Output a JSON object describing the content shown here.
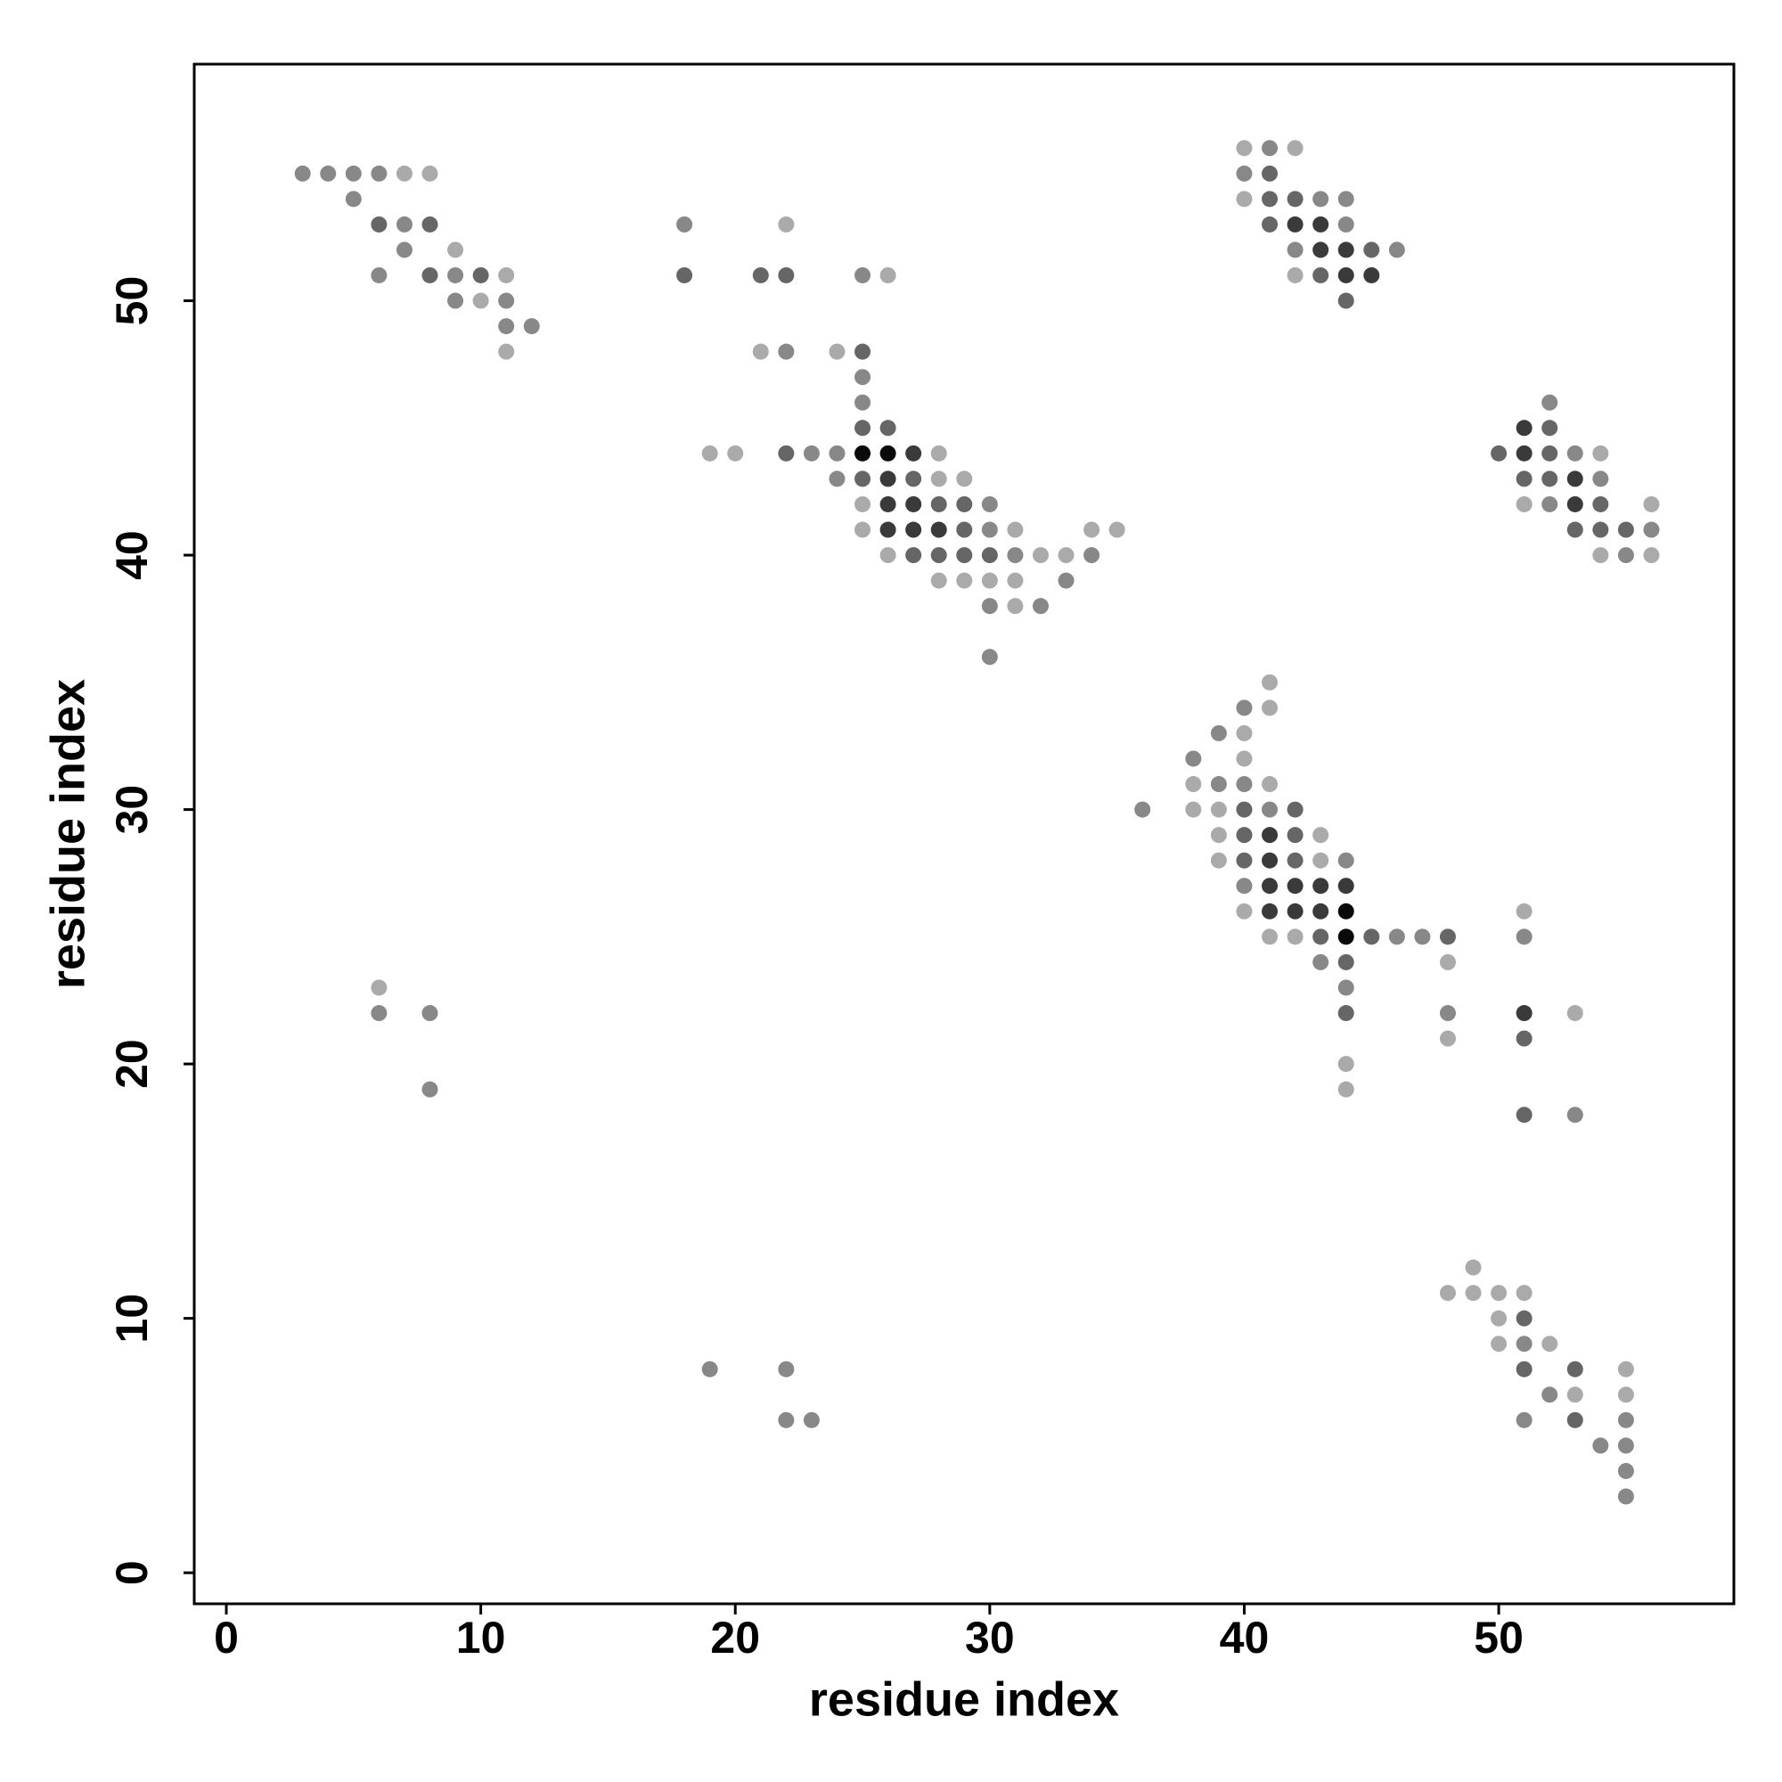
{
  "chart_data": {
    "type": "scatter",
    "xlabel": "residue index",
    "ylabel": "residue index",
    "xlim": [
      -1.26,
      59.24
    ],
    "ylim": [
      -1.22,
      59.3
    ],
    "xticks": [
      0,
      10,
      20,
      30,
      40,
      50
    ],
    "yticks": [
      0,
      10,
      20,
      30,
      40,
      50
    ],
    "grid": false,
    "series": [
      {
        "x": [
          40,
          41,
          42,
          3,
          4,
          5,
          6,
          7,
          8,
          40,
          41,
          5,
          40,
          41,
          42,
          43,
          44,
          6,
          7,
          8,
          18,
          22,
          41,
          42,
          43,
          44,
          7,
          9,
          42,
          43,
          44,
          45,
          46,
          6,
          8,
          9,
          10,
          11,
          18,
          21,
          22,
          25,
          26,
          42,
          43,
          44,
          45,
          9,
          10,
          11,
          44,
          11,
          12,
          11,
          21,
          22,
          24,
          25,
          25,
          25,
          52,
          25,
          26,
          51,
          52,
          19,
          20,
          22,
          23,
          24,
          25,
          26,
          27,
          28,
          50,
          51,
          52,
          53,
          54,
          24,
          25,
          26,
          27,
          28,
          29,
          51,
          52,
          53,
          54,
          25,
          26,
          27,
          28,
          29,
          30,
          51,
          52,
          53,
          54,
          56,
          25,
          26,
          27,
          28,
          29,
          30,
          31,
          34,
          35,
          53,
          54,
          55,
          56,
          26,
          27,
          28,
          29,
          30,
          31,
          32,
          33,
          34,
          54,
          55,
          56,
          28,
          29,
          30,
          31,
          33,
          30,
          31,
          32,
          30,
          41,
          40,
          41,
          39,
          40,
          38,
          40,
          38,
          39,
          40,
          41,
          36,
          38,
          39,
          40,
          41,
          42,
          39,
          40,
          41,
          42,
          43,
          39,
          40,
          41,
          42,
          43,
          44,
          40,
          41,
          42,
          43,
          44,
          40,
          41,
          42,
          43,
          44,
          51,
          41,
          42,
          43,
          44,
          45,
          46,
          47,
          48,
          51,
          43,
          44,
          48,
          6,
          44,
          6,
          8,
          44,
          48,
          51,
          53,
          48,
          51,
          44,
          8,
          44,
          51,
          53,
          49,
          48,
          49,
          50,
          51,
          50,
          51,
          50,
          51,
          52,
          19,
          22,
          51,
          53,
          55,
          52,
          53,
          55,
          22,
          23,
          51,
          53,
          55,
          54,
          55,
          55,
          55
        ],
        "values": [
          56,
          56,
          56,
          55,
          55,
          55,
          55,
          55,
          55,
          55,
          55,
          54,
          54,
          54,
          54,
          54,
          54,
          53,
          53,
          53,
          53,
          53,
          53,
          53,
          53,
          53,
          52,
          52,
          52,
          52,
          52,
          52,
          52,
          51,
          51,
          51,
          51,
          51,
          51,
          51,
          51,
          51,
          51,
          51,
          51,
          51,
          51,
          50,
          50,
          50,
          50,
          49,
          49,
          48,
          48,
          48,
          48,
          48,
          47,
          46,
          46,
          45,
          45,
          45,
          45,
          44,
          44,
          44,
          44,
          44,
          44,
          44,
          44,
          44,
          44,
          44,
          44,
          44,
          44,
          43,
          43,
          43,
          43,
          43,
          43,
          43,
          43,
          43,
          43,
          42,
          42,
          42,
          42,
          42,
          42,
          42,
          42,
          42,
          42,
          42,
          41,
          41,
          41,
          41,
          41,
          41,
          41,
          41,
          41,
          41,
          41,
          41,
          41,
          40,
          40,
          40,
          40,
          40,
          40,
          40,
          40,
          40,
          40,
          40,
          40,
          39,
          39,
          39,
          39,
          39,
          38,
          38,
          38,
          36,
          35,
          34,
          34,
          33,
          33,
          32,
          32,
          31,
          31,
          31,
          31,
          30,
          30,
          30,
          30,
          30,
          30,
          29,
          29,
          29,
          29,
          29,
          28,
          28,
          28,
          28,
          28,
          28,
          27,
          27,
          27,
          27,
          27,
          26,
          26,
          26,
          26,
          26,
          26,
          25,
          25,
          25,
          25,
          25,
          25,
          25,
          25,
          25,
          24,
          24,
          24,
          23,
          23,
          22,
          22,
          22,
          22,
          22,
          22,
          21,
          21,
          20,
          19,
          19,
          18,
          18,
          12,
          11,
          11,
          11,
          11,
          10,
          10,
          9,
          9,
          9,
          8,
          8,
          8,
          8,
          8,
          7,
          7,
          7,
          6,
          6,
          6,
          6,
          6,
          5,
          5,
          4,
          3
        ],
        "colors": [
          "#aaa",
          "#888",
          "#aaa",
          "#888",
          "#888",
          "#888",
          "#888",
          "#aaa",
          "#aaa",
          "#888",
          "#666",
          "#888",
          "#aaa",
          "#666",
          "#666",
          "#888",
          "#888",
          "#666",
          "#888",
          "#666",
          "#888",
          "#aaa",
          "#666",
          "#3a3a3a",
          "#3a3a3a",
          "#888",
          "#888",
          "#aaa",
          "#888",
          "#3a3a3a",
          "#3a3a3a",
          "#666",
          "#888",
          "#888",
          "#666",
          "#888",
          "#666",
          "#aaa",
          "#666",
          "#666",
          "#666",
          "#888",
          "#aaa",
          "#aaa",
          "#666",
          "#3a3a3a",
          "#3a3a3a",
          "#888",
          "#aaa",
          "#888",
          "#666",
          "#888",
          "#888",
          "#aaa",
          "#aaa",
          "#888",
          "#aaa",
          "#666",
          "#888",
          "#888",
          "#888",
          "#666",
          "#666",
          "#3a3a3a",
          "#666",
          "#aaa",
          "#aaa",
          "#666",
          "#888",
          "#888",
          "#0a0a0a",
          "#0a0a0a",
          "#3a3a3a",
          "#aaa",
          "#666",
          "#3a3a3a",
          "#666",
          "#888",
          "#aaa",
          "#888",
          "#666",
          "#3a3a3a",
          "#666",
          "#aaa",
          "#aaa",
          "#666",
          "#666",
          "#3a3a3a",
          "#888",
          "#aaa",
          "#3a3a3a",
          "#3a3a3a",
          "#666",
          "#666",
          "#888",
          "#aaa",
          "#888",
          "#3a3a3a",
          "#666",
          "#aaa",
          "#aaa",
          "#3a3a3a",
          "#3a3a3a",
          "#3a3a3a",
          "#666",
          "#888",
          "#aaa",
          "#aaa",
          "#aaa",
          "#666",
          "#666",
          "#666",
          "#888",
          "#aaa",
          "#666",
          "#666",
          "#666",
          "#666",
          "#888",
          "#aaa",
          "#aaa",
          "#888",
          "#aaa",
          "#888",
          "#aaa",
          "#aaa",
          "#aaa",
          "#aaa",
          "#aaa",
          "#888",
          "#888",
          "#aaa",
          "#888",
          "#888",
          "#aaa",
          "#888",
          "#aaa",
          "#888",
          "#aaa",
          "#888",
          "#aaa",
          "#aaa",
          "#888",
          "#888",
          "#aaa",
          "#888",
          "#aaa",
          "#aaa",
          "#666",
          "#888",
          "#666",
          "#aaa",
          "#666",
          "#3a3a3a",
          "#666",
          "#aaa",
          "#aaa",
          "#666",
          "#3a3a3a",
          "#666",
          "#aaa",
          "#888",
          "#888",
          "#3a3a3a",
          "#3a3a3a",
          "#3a3a3a",
          "#3a3a3a",
          "#aaa",
          "#3a3a3a",
          "#3a3a3a",
          "#3a3a3a",
          "#0a0a0a",
          "#aaa",
          "#aaa",
          "#aaa",
          "#666",
          "#0a0a0a",
          "#666",
          "#888",
          "#888",
          "#666",
          "#888",
          "#888",
          "#666",
          "#aaa",
          "#aaa",
          "#888",
          "#888",
          "#888",
          "#666",
          "#888",
          "#3a3a3a",
          "#aaa",
          "#aaa",
          "#666",
          "#aaa",
          "#888",
          "#aaa",
          "#666",
          "#888",
          "#aaa",
          "#aaa",
          "#aaa",
          "#aaa",
          "#aaa",
          "#aaa",
          "#666",
          "#aaa",
          "#888",
          "#aaa",
          "#888",
          "#888",
          "#666",
          "#666",
          "#aaa",
          "#888",
          "#aaa",
          "#aaa",
          "#888",
          "#888",
          "#888",
          "#666",
          "#888",
          "#888",
          "#888",
          "#888",
          "#888"
        ]
      }
    ]
  }
}
